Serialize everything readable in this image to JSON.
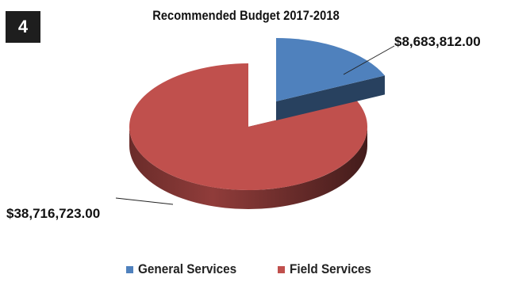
{
  "badge": "4",
  "chart_data": {
    "type": "pie",
    "title": "Recommended Budget 2017-2018",
    "slices": [
      {
        "name": "General Services",
        "value": 8683812.0,
        "label": "$8,683,812.00",
        "color": "#4f81bd"
      },
      {
        "name": "Field Services",
        "value": 38716723.0,
        "label": "$38,716,723.00",
        "color": "#c0504d"
      }
    ],
    "legend_position": "bottom",
    "style": "3d-exploded"
  }
}
